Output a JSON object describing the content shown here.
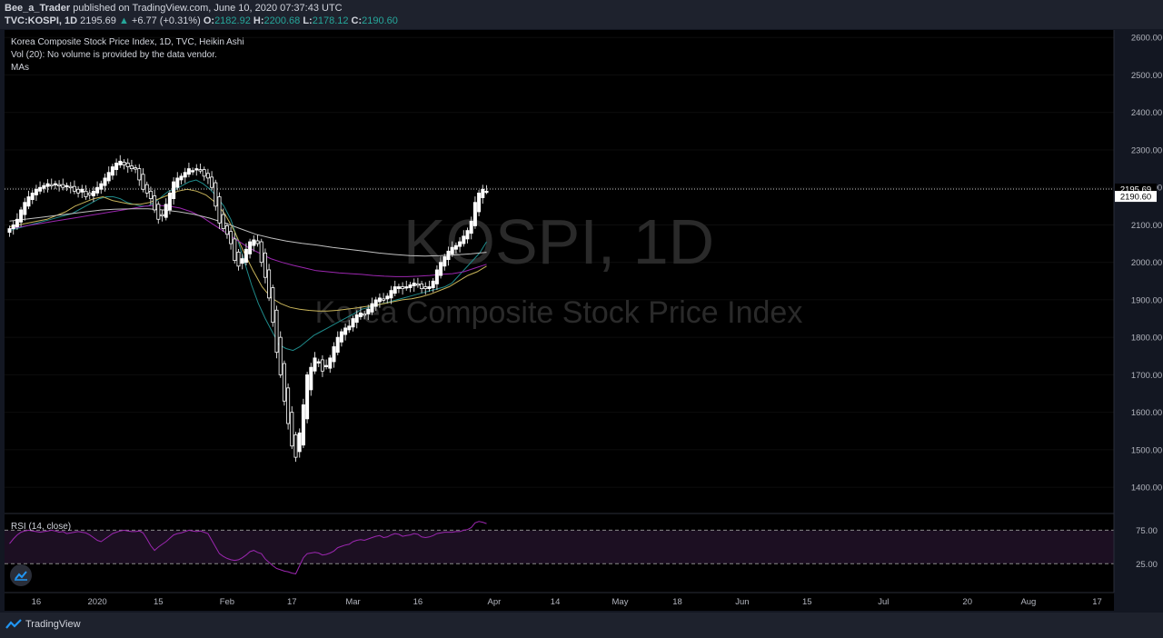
{
  "header": {
    "author": "Bee_a_Trader",
    "published": " published on TradingView.com, June 10, 2020 07:37:43 UTC",
    "symbol": "TVC:KOSPI, 1D",
    "last": "2195.69",
    "arrow": "▲",
    "change": "+6.77 (+0.31%)",
    "o_label": "O:",
    "o_val": "2182.92",
    "h_label": "H:",
    "h_val": "2200.68",
    "l_label": "L:",
    "l_val": "2178.12",
    "c_label": "C:",
    "c_val": "2190.60"
  },
  "legend": {
    "title": "Korea Composite Stock Price Index, 1D, TVC, Heikin Ashi",
    "volume": "Vol (20): No volume is provided by the data vendor.",
    "mas": "MAs"
  },
  "watermark": {
    "symbol": "KOSPI, 1D",
    "name": "Korea Composite Stock Price Index"
  },
  "rsi": {
    "label": "RSI (14, close)",
    "upper": "75.00",
    "lower": "25.00"
  },
  "footer": {
    "brand": "TradingView"
  },
  "colors": {
    "background": "#131722",
    "bull": "#ffffff",
    "bear": "#ffffff",
    "ma_fast": "#1f8a8a",
    "ma_mid": "#c8b45a",
    "ma_slow": "#9c27b0",
    "ma_long": "#c0c0c0",
    "rsi": "#9c27b0",
    "rsi_band": "#1c0f22"
  },
  "chart_data": {
    "type": "candlestick",
    "style": "Heikin Ashi",
    "price_axis": {
      "ylim": [
        1330,
        2620
      ],
      "ticks": [
        1400,
        1500,
        1600,
        1700,
        1800,
        1900,
        2000,
        2100,
        2200,
        2300,
        2400,
        2500,
        2600
      ],
      "tick_labels": [
        "1400.00",
        "1500.00",
        "1600.00",
        "1700.00",
        "1800.00",
        "1900.00",
        "2000.00",
        "2100.00",
        "2200.00",
        "2300.00",
        "2400.00",
        "2500.00",
        "2600.00"
      ]
    },
    "time_axis": {
      "labels": [
        {
          "text": "16",
          "bar": 7
        },
        {
          "text": "2020",
          "bar": 23
        },
        {
          "text": "15",
          "bar": 39
        },
        {
          "text": "Feb",
          "bar": 57
        },
        {
          "text": "17",
          "bar": 74
        },
        {
          "text": "Mar",
          "bar": 90
        },
        {
          "text": "16",
          "bar": 107
        },
        {
          "text": "Apr",
          "bar": 127
        },
        {
          "text": "14",
          "bar": 143
        },
        {
          "text": "May",
          "bar": 160
        },
        {
          "text": "18",
          "bar": 175
        },
        {
          "text": "Jun",
          "bar": 192
        },
        {
          "text": "15",
          "bar": 209
        },
        {
          "text": "Jul",
          "bar": 229
        },
        {
          "text": "20",
          "bar": 251
        },
        {
          "text": "Aug",
          "bar": 267
        },
        {
          "text": "17",
          "bar": 285
        }
      ]
    },
    "last_price_line": 2195.69,
    "price_tags": [
      "2195.69",
      "2190.60"
    ],
    "closes": [
      2090,
      2100,
      2115,
      2140,
      2160,
      2175,
      2185,
      2195,
      2200,
      2205,
      2210,
      2205,
      2210,
      2205,
      2200,
      2205,
      2200,
      2190,
      2185,
      2195,
      2175,
      2180,
      2190,
      2200,
      2210,
      2225,
      2240,
      2255,
      2265,
      2270,
      2260,
      2255,
      2250,
      2250,
      2220,
      2195,
      2185,
      2170,
      2140,
      2115,
      2125,
      2155,
      2185,
      2215,
      2225,
      2230,
      2240,
      2250,
      2245,
      2250,
      2245,
      2230,
      2225,
      2200,
      2150,
      2105,
      2090,
      2075,
      2050,
      2005,
      1990,
      2010,
      2035,
      2055,
      2060,
      2050,
      2000,
      1960,
      1905,
      1840,
      1760,
      1700,
      1630,
      1570,
      1510,
      1480,
      1545,
      1620,
      1700,
      1720,
      1745,
      1735,
      1710,
      1725,
      1745,
      1775,
      1800,
      1815,
      1825,
      1830,
      1850,
      1860,
      1865,
      1860,
      1875,
      1890,
      1900,
      1905,
      1900,
      1910,
      1925,
      1935,
      1935,
      1930,
      1935,
      1940,
      1945,
      1940,
      1930,
      1930,
      1935,
      1950,
      1980,
      2000,
      2015,
      2030,
      2040,
      2045,
      2055,
      2070,
      2085,
      2110,
      2160,
      2185,
      2195,
      2190
    ],
    "ma_series": [
      {
        "name": "MA fast",
        "values": [
          2085,
          2090,
          2095,
          2100,
          2105,
          2110,
          2115,
          2120,
          2125,
          2130,
          2140,
          2150,
          2160,
          2170,
          2175,
          2175,
          2170,
          2160,
          2155,
          2150,
          2150,
          2160,
          2175,
          2190,
          2195,
          2205,
          2215,
          2220,
          2210,
          2195,
          2175,
          2150,
          2115,
          2060,
          2000,
          1940,
          1890,
          1850,
          1815,
          1780,
          1770,
          1765,
          1775,
          1790,
          1805,
          1815,
          1825,
          1835,
          1845,
          1855,
          1865,
          1875,
          1880,
          1885,
          1890,
          1895,
          1900,
          1905,
          1910,
          1915,
          1920,
          1925,
          1930,
          1935,
          1945,
          1965,
          1985,
          2005,
          2025,
          2055
        ]
      },
      {
        "name": "MA mid",
        "values": [
          2095,
          2100,
          2105,
          2110,
          2115,
          2125,
          2135,
          2150,
          2160,
          2170,
          2175,
          2165,
          2160,
          2155,
          2155,
          2160,
          2170,
          2180,
          2190,
          2195,
          2190,
          2180,
          2160,
          2130,
          2085,
          2030,
          1980,
          1935,
          1905,
          1890,
          1880,
          1875,
          1872,
          1870,
          1870,
          1872,
          1875,
          1878,
          1882,
          1885,
          1890,
          1895,
          1900,
          1903,
          1908,
          1915,
          1925,
          1935,
          1950,
          1965,
          1975,
          1990
        ]
      },
      {
        "name": "MA slow",
        "values": [
          2090,
          2095,
          2100,
          2105,
          2110,
          2115,
          2120,
          2125,
          2130,
          2135,
          2140,
          2145,
          2150,
          2152,
          2150,
          2145,
          2135,
          2120,
          2100,
          2080,
          2060,
          2040,
          2025,
          2010,
          2000,
          1992,
          1985,
          1978,
          1975,
          1972,
          1970,
          1968,
          1965,
          1963,
          1962,
          1962,
          1963,
          1965,
          1968,
          1970,
          1975,
          1985,
          1995
        ]
      },
      {
        "name": "MA long",
        "values": [
          2110,
          2115,
          2120,
          2125,
          2130,
          2135,
          2140,
          2142,
          2143,
          2143,
          2140,
          2135,
          2128,
          2118,
          2105,
          2090,
          2075,
          2065,
          2057,
          2051,
          2046,
          2040,
          2035,
          2030,
          2025,
          2021,
          2018,
          2017,
          2018,
          2020,
          2023,
          2027
        ]
      }
    ],
    "rsi": {
      "ylim": [
        -18,
        100
      ],
      "bands": [
        25,
        75
      ],
      "values": [
        55,
        62,
        68,
        72,
        74,
        75,
        74,
        73,
        72,
        73,
        74,
        75,
        74,
        72,
        73,
        70,
        71,
        72,
        73,
        72,
        71,
        68,
        64,
        60,
        58,
        62,
        66,
        70,
        72,
        74,
        75,
        74,
        73,
        73,
        74,
        71,
        62,
        52,
        45,
        50,
        54,
        58,
        63,
        68,
        70,
        71,
        73,
        75,
        74,
        73,
        74,
        72,
        70,
        60,
        50,
        40,
        36,
        33,
        31,
        30,
        31,
        34,
        38,
        43,
        45,
        42,
        40,
        32,
        27,
        22,
        18,
        16,
        14,
        13,
        11,
        10,
        22,
        34,
        40,
        41,
        42,
        41,
        38,
        39,
        41,
        44,
        49,
        51,
        53,
        54,
        58,
        60,
        61,
        60,
        62,
        64,
        66,
        67,
        64,
        65,
        68,
        70,
        69,
        66,
        67,
        68,
        70,
        69,
        65,
        64,
        65,
        67,
        70,
        71,
        72,
        72,
        72,
        73,
        73,
        75,
        76,
        79,
        86,
        88,
        87,
        85
      ]
    }
  }
}
